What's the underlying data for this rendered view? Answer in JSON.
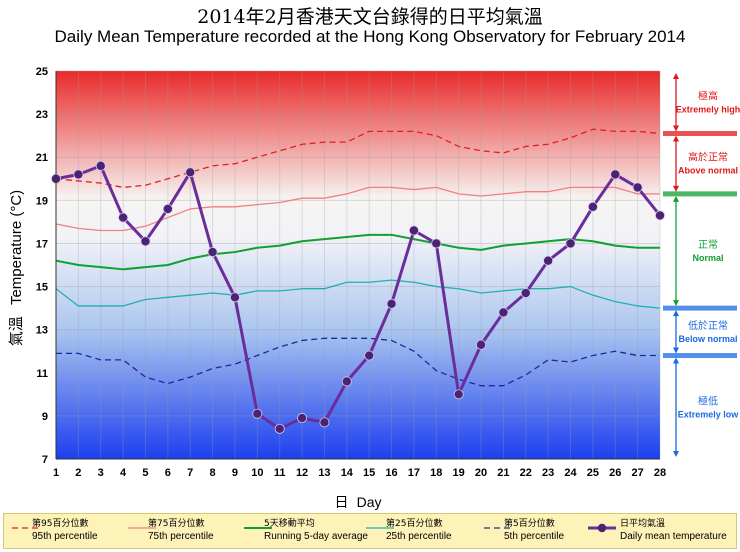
{
  "chart_data": {
    "type": "line",
    "title_zh": "2014年2月香港天文台錄得的日平均氣溫",
    "title": "Daily Mean Temperature recorded at the Hong Kong Observatory for February 2014",
    "ylabel_zh": "氣溫",
    "ylabel": "Temperature (°C)",
    "xlabel_zh": "日",
    "xlabel": "Day",
    "ylim": [
      7,
      25
    ],
    "yticks": [
      7,
      9,
      11,
      13,
      15,
      17,
      19,
      21,
      23,
      25
    ],
    "x": [
      1,
      2,
      3,
      4,
      5,
      6,
      7,
      8,
      9,
      10,
      11,
      12,
      13,
      14,
      15,
      16,
      17,
      18,
      19,
      20,
      21,
      22,
      23,
      24,
      25,
      26,
      27,
      28
    ],
    "grid": true,
    "series": [
      {
        "key": "p95",
        "name_zh": "第95百分位數",
        "name": "95th percentile",
        "color": "#e02020",
        "dash": "6,4",
        "values": [
          20.0,
          19.9,
          19.8,
          19.6,
          19.7,
          20.0,
          20.3,
          20.6,
          20.7,
          21.0,
          21.3,
          21.6,
          21.7,
          21.7,
          22.2,
          22.2,
          22.2,
          22.0,
          21.5,
          21.3,
          21.2,
          21.5,
          21.6,
          21.9,
          22.3,
          22.2,
          22.2,
          22.1
        ]
      },
      {
        "key": "p75",
        "name_zh": "第75百分位數",
        "name": "75th percentile",
        "color": "#f08080",
        "dash": "",
        "values": [
          17.9,
          17.7,
          17.6,
          17.6,
          17.8,
          18.2,
          18.6,
          18.7,
          18.7,
          18.8,
          18.9,
          19.1,
          19.1,
          19.3,
          19.6,
          19.6,
          19.5,
          19.6,
          19.3,
          19.2,
          19.3,
          19.4,
          19.4,
          19.6,
          19.6,
          19.6,
          19.3,
          19.3
        ]
      },
      {
        "key": "avg5",
        "name_zh": "5天移動平均",
        "name": "Running  5-day average",
        "color": "#10a030",
        "dash": "",
        "values": [
          16.2,
          16.0,
          15.9,
          15.8,
          15.9,
          16.0,
          16.3,
          16.5,
          16.6,
          16.8,
          16.9,
          17.1,
          17.2,
          17.3,
          17.4,
          17.4,
          17.2,
          17.0,
          16.8,
          16.7,
          16.9,
          17.0,
          17.1,
          17.2,
          17.1,
          16.9,
          16.8,
          16.8
        ]
      },
      {
        "key": "p25",
        "name_zh": "第25百分位數",
        "name": "25th percentile",
        "color": "#20b0b0",
        "dash": "",
        "values": [
          14.9,
          14.1,
          14.1,
          14.1,
          14.4,
          14.5,
          14.6,
          14.7,
          14.6,
          14.8,
          14.8,
          14.9,
          14.9,
          15.2,
          15.2,
          15.3,
          15.2,
          15.0,
          14.9,
          14.7,
          14.8,
          14.9,
          14.9,
          15.0,
          14.6,
          14.3,
          14.1,
          14.0
        ]
      },
      {
        "key": "p5",
        "name_zh": "第5百分位數",
        "name": "5th percentile",
        "color": "#1a2a9a",
        "dash": "6,4",
        "values": [
          11.9,
          11.9,
          11.6,
          11.6,
          10.8,
          10.5,
          10.8,
          11.2,
          11.4,
          11.8,
          12.2,
          12.5,
          12.6,
          12.6,
          12.6,
          12.5,
          12.0,
          11.1,
          10.7,
          10.4,
          10.4,
          10.9,
          11.6,
          11.5,
          11.8,
          12.0,
          11.8,
          11.8
        ]
      },
      {
        "key": "daily",
        "name_zh": "日平均氣溫",
        "name": "Daily mean temperature",
        "color": "#6a2e9a",
        "dash": "",
        "values": [
          20.0,
          20.2,
          20.6,
          18.2,
          17.1,
          18.6,
          20.3,
          16.6,
          14.5,
          9.1,
          8.4,
          8.9,
          8.7,
          10.6,
          11.8,
          14.2,
          17.6,
          17.0,
          10.0,
          12.3,
          13.8,
          14.7,
          16.2,
          17.0,
          18.7,
          20.2,
          19.6,
          18.3
        ]
      }
    ],
    "zones": [
      {
        "name_zh": "極高",
        "name": "Extremely high",
        "color": "#e01818",
        "from": 22.1,
        "to": 25
      },
      {
        "name_zh": "高於正常",
        "name": "Above normal",
        "color": "#e01818",
        "from": 19.3,
        "to": 22.1
      },
      {
        "name_zh": "正常",
        "name": "Normal",
        "color": "#10a030",
        "from": 14.0,
        "to": 19.3
      },
      {
        "name_zh": "低於正常",
        "name": "Below normal",
        "color": "#1a6ae0",
        "from": 11.8,
        "to": 14.0
      },
      {
        "name_zh": "極低",
        "name": "Extremely low",
        "color": "#1a6ae0",
        "from": 7,
        "to": 11.8
      }
    ]
  }
}
